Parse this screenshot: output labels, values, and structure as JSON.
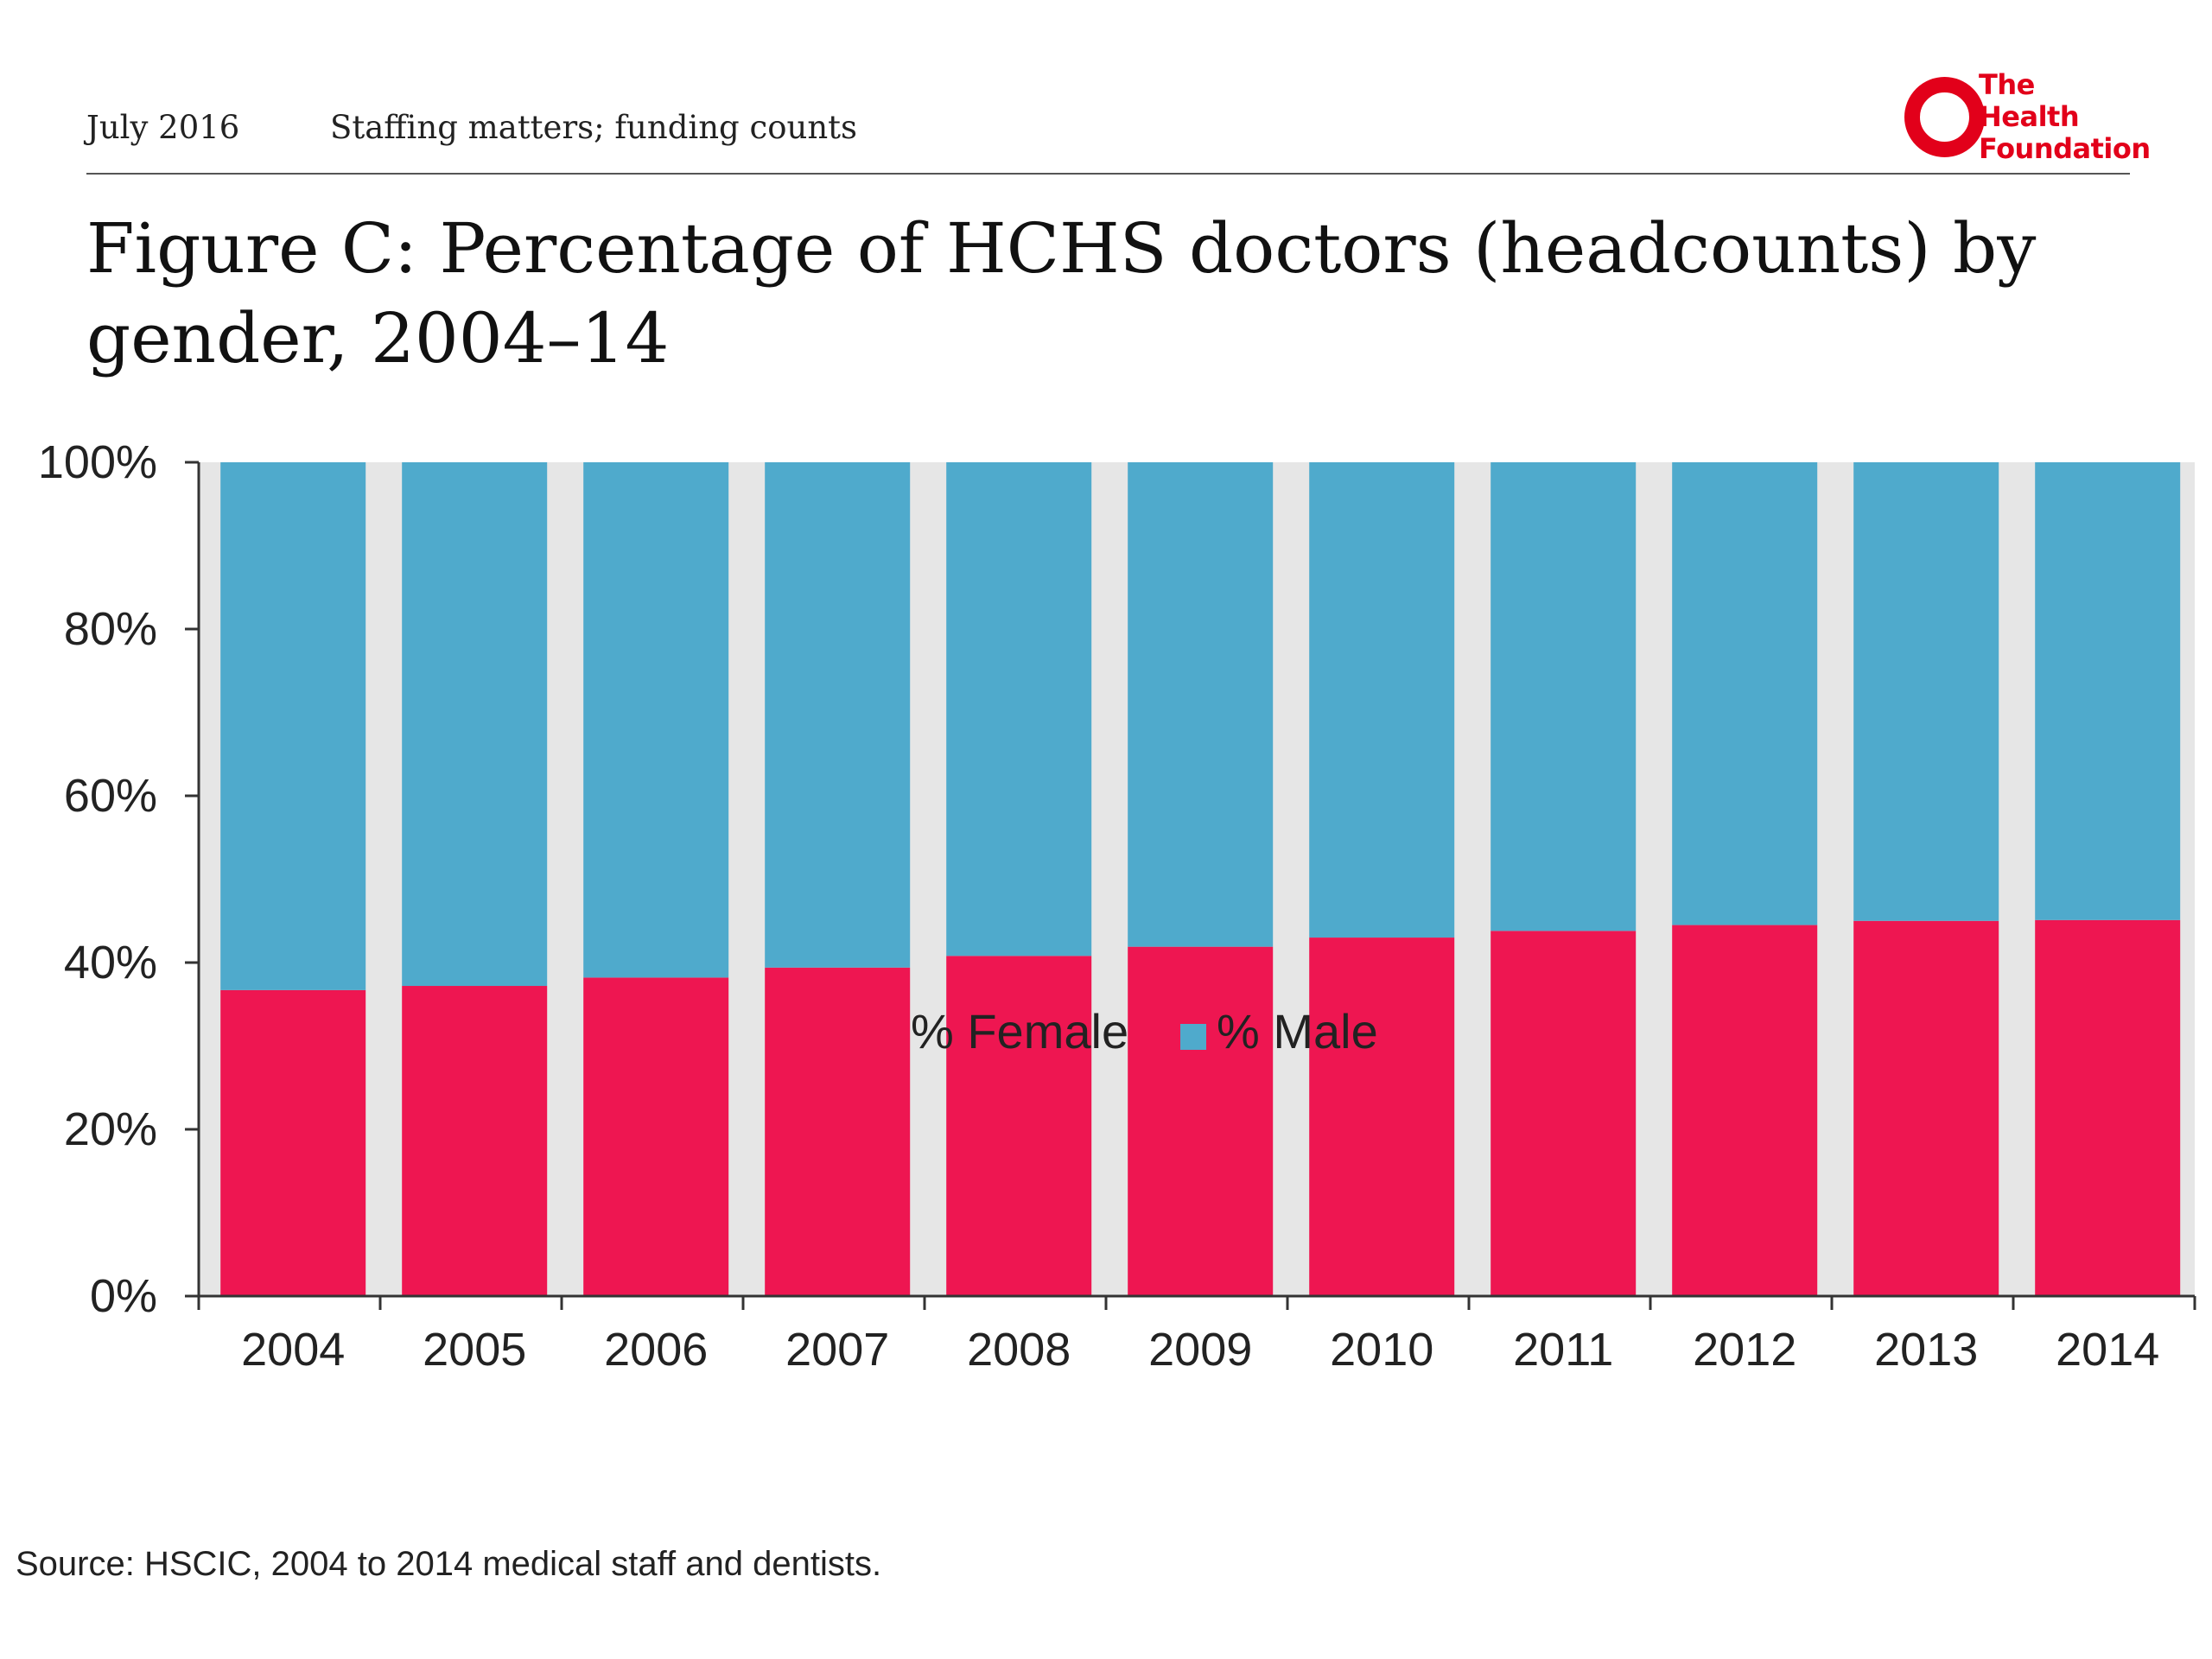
{
  "header": {
    "date": "July 2016",
    "document_title": "Staffing matters; funding counts",
    "logo_lines": [
      "The",
      "Health",
      "Foundation"
    ]
  },
  "colors": {
    "female": "#ee1651",
    "male": "#4faacc",
    "plot_background": "#e6e6e6",
    "logo_red": "#e2001a"
  },
  "chart_data": {
    "type": "bar",
    "stacked": true,
    "title": "Figure C: Percentage of HCHS doctors (headcounts) by gender, 2004–14",
    "categories": [
      "2004",
      "2005",
      "2006",
      "2007",
      "2008",
      "2009",
      "2010",
      "2011",
      "2012",
      "2013",
      "2014"
    ],
    "series": [
      {
        "name": "% Female",
        "values": [
          36.7,
          37.2,
          38.2,
          39.4,
          40.8,
          41.9,
          43.0,
          43.8,
          44.5,
          45.0,
          45.1
        ]
      },
      {
        "name": "% Male",
        "values": [
          63.3,
          62.8,
          61.8,
          60.6,
          59.2,
          58.1,
          57.0,
          56.2,
          55.5,
          55.0,
          54.9
        ]
      }
    ],
    "ylim": [
      0,
      100
    ],
    "yticks": [
      "0%",
      "20%",
      "40%",
      "60%",
      "80%",
      "100%"
    ],
    "grid": false,
    "legend": "bottom",
    "source": "Source: HSCIC, 2004 to 2014 medical staff and dentists."
  }
}
